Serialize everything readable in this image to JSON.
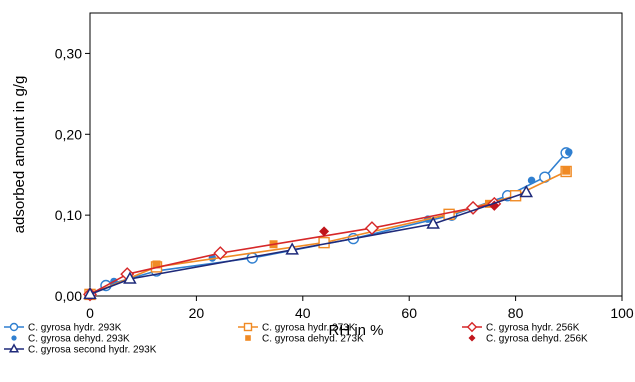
{
  "chart_data": {
    "type": "scatter",
    "xlabel": "RH in %",
    "ylabel": "adsorbed amount in g/g",
    "xlim": [
      0,
      100
    ],
    "ylim": [
      0,
      0.35
    ],
    "x_ticks": [
      0,
      20,
      40,
      60,
      80,
      100
    ],
    "y_ticks": [
      0.0,
      0.1,
      0.2,
      0.3
    ],
    "y_tick_labels": [
      "0,00",
      "0,10",
      "0,20",
      "0,30"
    ],
    "grid": false,
    "legend_position": "bottom",
    "series": [
      {
        "name": "C. gyrosa hydr. 293K",
        "color": "#2f7fd0",
        "marker": "open-circle",
        "line": true,
        "x": [
          0,
          3,
          12.5,
          30.5,
          49.5,
          68,
          78.5,
          85.5,
          89.5
        ],
        "y": [
          0.002,
          0.013,
          0.031,
          0.047,
          0.071,
          0.1,
          0.124,
          0.147,
          0.177
        ]
      },
      {
        "name": "C. gyrosa dehyd. 293K",
        "color": "#2f7fd0",
        "marker": "filled-circle",
        "line": false,
        "x": [
          0,
          4.5,
          23,
          63.5,
          83,
          90
        ],
        "y": [
          0.002,
          0.018,
          0.047,
          0.095,
          0.143,
          0.178
        ]
      },
      {
        "name": "C. gyrosa hydr.  273K",
        "color": "#f08a24",
        "marker": "open-square",
        "line": true,
        "x": [
          0,
          12.5,
          44,
          67.5,
          80,
          89.5
        ],
        "y": [
          0.002,
          0.036,
          0.066,
          0.101,
          0.124,
          0.154
        ]
      },
      {
        "name": "C. gyrosa dehyd. 273K",
        "color": "#f08a24",
        "marker": "filled-square",
        "line": false,
        "x": [
          0,
          12.5,
          34.5,
          75,
          89.5
        ],
        "y": [
          0.002,
          0.039,
          0.064,
          0.114,
          0.155
        ]
      },
      {
        "name": "C. gyrosa hydr. 256K",
        "color": "#d62728",
        "marker": "open-diamond",
        "line": true,
        "x": [
          0,
          7,
          24.5,
          53,
          72,
          76
        ],
        "y": [
          0.002,
          0.027,
          0.053,
          0.084,
          0.109,
          0.114
        ]
      },
      {
        "name": "C. gyrosa dehyd. 256K",
        "color": "#c0151b",
        "marker": "filled-diamond",
        "line": false,
        "x": [
          44,
          76
        ],
        "y": [
          0.08,
          0.112
        ]
      },
      {
        "name": "C. gyrosa second hydr. 293K",
        "color": "#1f2a7a",
        "marker": "open-triangle",
        "line": true,
        "x": [
          0,
          7.5,
          38,
          64.5,
          82
        ],
        "y": [
          0.002,
          0.021,
          0.057,
          0.089,
          0.128
        ]
      }
    ]
  }
}
